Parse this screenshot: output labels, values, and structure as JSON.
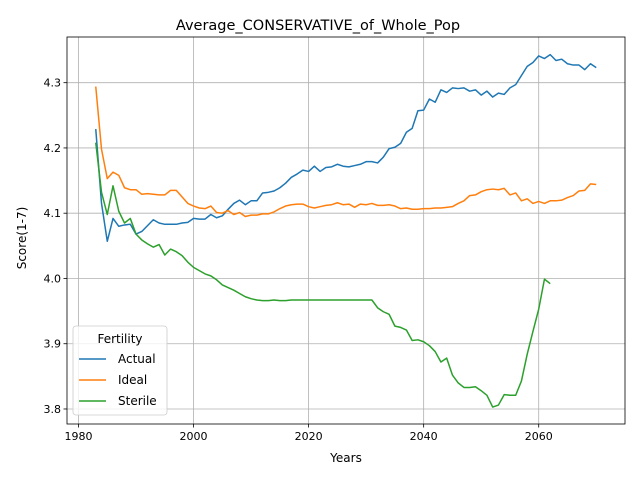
{
  "chart_data": {
    "type": "line",
    "title": "Average_CONSERVATIVE_of_Whole_Pop",
    "xlabel": "Years",
    "ylabel": "Score(1-7)",
    "xlim": [
      1978,
      2075
    ],
    "ylim": [
      3.777,
      4.37
    ],
    "xticks": [
      1980,
      2000,
      2020,
      2040,
      2060
    ],
    "yticks": [
      3.8,
      3.9,
      4.0,
      4.1,
      4.2,
      4.3
    ],
    "grid": true,
    "legend": {
      "title": "Fertility",
      "position": "lower-left"
    },
    "series": [
      {
        "name": "Actual",
        "color": "#1f77b4",
        "points": [
          [
            1983,
            4.229
          ],
          [
            1984,
            4.115
          ],
          [
            1985,
            4.057
          ],
          [
            1986,
            4.092
          ],
          [
            1987,
            4.08
          ],
          [
            1988,
            4.082
          ],
          [
            1989,
            4.083
          ],
          [
            1990,
            4.068
          ],
          [
            1991,
            4.072
          ],
          [
            1992,
            4.081
          ],
          [
            1993,
            4.09
          ],
          [
            1994,
            4.085
          ],
          [
            1995,
            4.083
          ],
          [
            1996,
            4.083
          ],
          [
            1997,
            4.083
          ],
          [
            1998,
            4.085
          ],
          [
            1999,
            4.086
          ],
          [
            2000,
            4.092
          ],
          [
            2001,
            4.091
          ],
          [
            2002,
            4.091
          ],
          [
            2003,
            4.098
          ],
          [
            2004,
            4.093
          ],
          [
            2005,
            4.096
          ],
          [
            2006,
            4.106
          ],
          [
            2007,
            4.115
          ],
          [
            2008,
            4.12
          ],
          [
            2009,
            4.113
          ],
          [
            2010,
            4.119
          ],
          [
            2011,
            4.119
          ],
          [
            2012,
            4.131
          ],
          [
            2013,
            4.132
          ],
          [
            2014,
            4.134
          ],
          [
            2015,
            4.139
          ],
          [
            2016,
            4.146
          ],
          [
            2017,
            4.155
          ],
          [
            2018,
            4.16
          ],
          [
            2019,
            4.166
          ],
          [
            2020,
            4.164
          ],
          [
            2021,
            4.172
          ],
          [
            2022,
            4.164
          ],
          [
            2023,
            4.17
          ],
          [
            2024,
            4.171
          ],
          [
            2025,
            4.175
          ],
          [
            2026,
            4.172
          ],
          [
            2027,
            4.171
          ],
          [
            2028,
            4.173
          ],
          [
            2029,
            4.175
          ],
          [
            2030,
            4.179
          ],
          [
            2031,
            4.179
          ],
          [
            2032,
            4.177
          ],
          [
            2033,
            4.186
          ],
          [
            2034,
            4.199
          ],
          [
            2035,
            4.201
          ],
          [
            2036,
            4.207
          ],
          [
            2037,
            4.224
          ],
          [
            2038,
            4.23
          ],
          [
            2039,
            4.257
          ],
          [
            2040,
            4.258
          ],
          [
            2041,
            4.275
          ],
          [
            2042,
            4.27
          ],
          [
            2043,
            4.289
          ],
          [
            2044,
            4.285
          ],
          [
            2045,
            4.292
          ],
          [
            2046,
            4.291
          ],
          [
            2047,
            4.292
          ],
          [
            2048,
            4.287
          ],
          [
            2049,
            4.289
          ],
          [
            2050,
            4.281
          ],
          [
            2051,
            4.287
          ],
          [
            2052,
            4.278
          ],
          [
            2053,
            4.284
          ],
          [
            2054,
            4.282
          ],
          [
            2055,
            4.292
          ],
          [
            2056,
            4.297
          ],
          [
            2057,
            4.311
          ],
          [
            2058,
            4.325
          ],
          [
            2059,
            4.331
          ],
          [
            2060,
            4.341
          ],
          [
            2061,
            4.337
          ],
          [
            2062,
            4.343
          ],
          [
            2063,
            4.334
          ],
          [
            2064,
            4.336
          ],
          [
            2065,
            4.329
          ],
          [
            2066,
            4.327
          ],
          [
            2067,
            4.327
          ],
          [
            2068,
            4.32
          ],
          [
            2069,
            4.329
          ],
          [
            2070,
            4.323
          ]
        ]
      },
      {
        "name": "Ideal",
        "color": "#ff7f0e",
        "points": [
          [
            1983,
            4.294
          ],
          [
            1984,
            4.198
          ],
          [
            1985,
            4.153
          ],
          [
            1986,
            4.163
          ],
          [
            1987,
            4.158
          ],
          [
            1988,
            4.139
          ],
          [
            1989,
            4.136
          ],
          [
            1990,
            4.136
          ],
          [
            1991,
            4.129
          ],
          [
            1992,
            4.13
          ],
          [
            1993,
            4.129
          ],
          [
            1994,
            4.128
          ],
          [
            1995,
            4.128
          ],
          [
            1996,
            4.135
          ],
          [
            1997,
            4.135
          ],
          [
            1998,
            4.125
          ],
          [
            1999,
            4.115
          ],
          [
            2000,
            4.111
          ],
          [
            2001,
            4.108
          ],
          [
            2002,
            4.107
          ],
          [
            2003,
            4.111
          ],
          [
            2004,
            4.101
          ],
          [
            2005,
            4.1
          ],
          [
            2006,
            4.104
          ],
          [
            2007,
            4.098
          ],
          [
            2008,
            4.101
          ],
          [
            2009,
            4.095
          ],
          [
            2010,
            4.097
          ],
          [
            2011,
            4.097
          ],
          [
            2012,
            4.099
          ],
          [
            2013,
            4.099
          ],
          [
            2014,
            4.102
          ],
          [
            2015,
            4.107
          ],
          [
            2016,
            4.111
          ],
          [
            2017,
            4.113
          ],
          [
            2018,
            4.114
          ],
          [
            2019,
            4.114
          ],
          [
            2020,
            4.11
          ],
          [
            2021,
            4.108
          ],
          [
            2022,
            4.11
          ],
          [
            2023,
            4.112
          ],
          [
            2024,
            4.113
          ],
          [
            2025,
            4.116
          ],
          [
            2026,
            4.113
          ],
          [
            2027,
            4.114
          ],
          [
            2028,
            4.109
          ],
          [
            2029,
            4.114
          ],
          [
            2030,
            4.113
          ],
          [
            2031,
            4.115
          ],
          [
            2032,
            4.112
          ],
          [
            2033,
            4.112
          ],
          [
            2034,
            4.113
          ],
          [
            2035,
            4.111
          ],
          [
            2036,
            4.107
          ],
          [
            2037,
            4.108
          ],
          [
            2038,
            4.106
          ],
          [
            2039,
            4.106
          ],
          [
            2040,
            4.107
          ],
          [
            2041,
            4.107
          ],
          [
            2042,
            4.108
          ],
          [
            2043,
            4.108
          ],
          [
            2044,
            4.109
          ],
          [
            2045,
            4.11
          ],
          [
            2046,
            4.115
          ],
          [
            2047,
            4.119
          ],
          [
            2048,
            4.127
          ],
          [
            2049,
            4.128
          ],
          [
            2050,
            4.133
          ],
          [
            2051,
            4.136
          ],
          [
            2052,
            4.137
          ],
          [
            2053,
            4.136
          ],
          [
            2054,
            4.138
          ],
          [
            2055,
            4.128
          ],
          [
            2056,
            4.131
          ],
          [
            2057,
            4.119
          ],
          [
            2058,
            4.122
          ],
          [
            2059,
            4.115
          ],
          [
            2060,
            4.118
          ],
          [
            2061,
            4.115
          ],
          [
            2062,
            4.119
          ],
          [
            2063,
            4.119
          ],
          [
            2064,
            4.12
          ],
          [
            2065,
            4.124
          ],
          [
            2066,
            4.127
          ],
          [
            2067,
            4.134
          ],
          [
            2068,
            4.135
          ],
          [
            2069,
            4.145
          ],
          [
            2070,
            4.144
          ]
        ]
      },
      {
        "name": "Sterile",
        "color": "#2ca02c",
        "points": [
          [
            1983,
            4.208
          ],
          [
            1984,
            4.132
          ],
          [
            1985,
            4.098
          ],
          [
            1986,
            4.142
          ],
          [
            1987,
            4.103
          ],
          [
            1988,
            4.085
          ],
          [
            1989,
            4.092
          ],
          [
            1990,
            4.068
          ],
          [
            1991,
            4.059
          ],
          [
            1992,
            4.053
          ],
          [
            1993,
            4.048
          ],
          [
            1994,
            4.052
          ],
          [
            1995,
            4.036
          ],
          [
            1996,
            4.045
          ],
          [
            1997,
            4.041
          ],
          [
            1998,
            4.035
          ],
          [
            1999,
            4.025
          ],
          [
            2000,
            4.017
          ],
          [
            2001,
            4.012
          ],
          [
            2002,
            4.007
          ],
          [
            2003,
            4.004
          ],
          [
            2004,
            3.998
          ],
          [
            2005,
            3.99
          ],
          [
            2006,
            3.986
          ],
          [
            2007,
            3.982
          ],
          [
            2008,
            3.977
          ],
          [
            2009,
            3.972
          ],
          [
            2010,
            3.969
          ],
          [
            2011,
            3.967
          ],
          [
            2012,
            3.966
          ],
          [
            2013,
            3.966
          ],
          [
            2014,
            3.967
          ],
          [
            2015,
            3.966
          ],
          [
            2016,
            3.966
          ],
          [
            2017,
            3.967
          ],
          [
            2018,
            3.967
          ],
          [
            2019,
            3.967
          ],
          [
            2020,
            3.967
          ],
          [
            2021,
            3.967
          ],
          [
            2022,
            3.967
          ],
          [
            2023,
            3.967
          ],
          [
            2024,
            3.967
          ],
          [
            2025,
            3.967
          ],
          [
            2026,
            3.967
          ],
          [
            2027,
            3.967
          ],
          [
            2028,
            3.967
          ],
          [
            2029,
            3.967
          ],
          [
            2030,
            3.967
          ],
          [
            2031,
            3.967
          ],
          [
            2032,
            3.955
          ],
          [
            2033,
            3.949
          ],
          [
            2034,
            3.945
          ],
          [
            2035,
            3.927
          ],
          [
            2036,
            3.925
          ],
          [
            2037,
            3.921
          ],
          [
            2038,
            3.905
          ],
          [
            2039,
            3.906
          ],
          [
            2040,
            3.903
          ],
          [
            2041,
            3.897
          ],
          [
            2042,
            3.888
          ],
          [
            2043,
            3.872
          ],
          [
            2044,
            3.878
          ],
          [
            2045,
            3.852
          ],
          [
            2046,
            3.84
          ],
          [
            2047,
            3.833
          ],
          [
            2048,
            3.833
          ],
          [
            2049,
            3.834
          ],
          [
            2050,
            3.828
          ],
          [
            2051,
            3.821
          ],
          [
            2052,
            3.803
          ],
          [
            2053,
            3.806
          ],
          [
            2054,
            3.822
          ],
          [
            2055,
            3.821
          ],
          [
            2056,
            3.821
          ],
          [
            2057,
            3.843
          ],
          [
            2058,
            3.884
          ],
          [
            2059,
            3.919
          ],
          [
            2060,
            3.953
          ],
          [
            2061,
            3.999
          ],
          [
            2062,
            3.992
          ]
        ]
      }
    ]
  }
}
